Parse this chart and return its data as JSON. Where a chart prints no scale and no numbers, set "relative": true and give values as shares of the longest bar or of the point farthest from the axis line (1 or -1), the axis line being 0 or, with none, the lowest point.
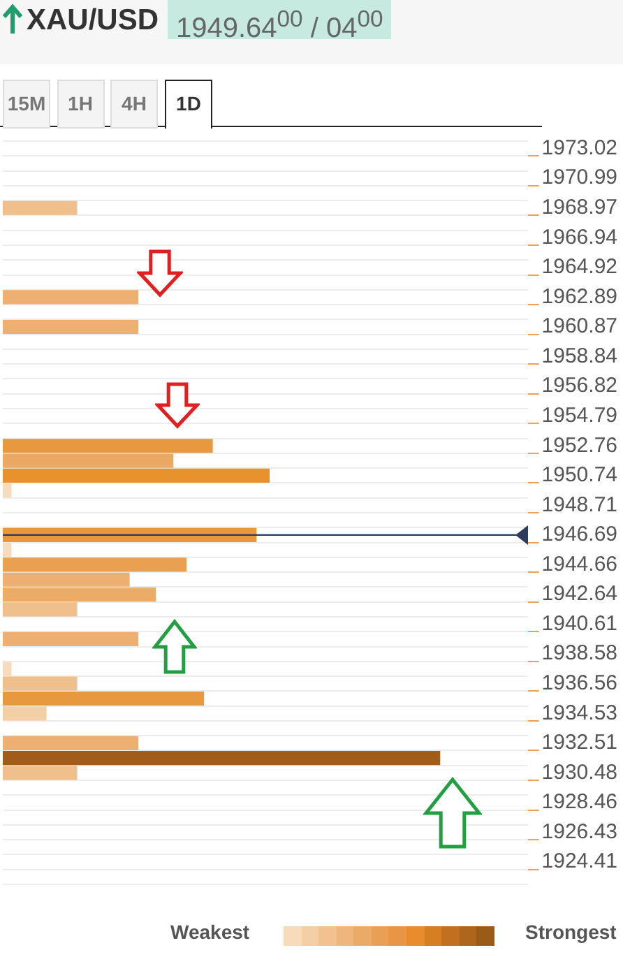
{
  "chart_data": {
    "type": "bar",
    "orientation": "horizontal",
    "relative": true,
    "title": "XAU/USD",
    "subtitle": "1949.64$^{00}$ / 04$^{00}$",
    "categories": [
      "1973.02",
      null,
      "1970.99",
      null,
      "1968.97",
      null,
      "1966.94",
      null,
      "1964.92",
      null,
      "1962.89",
      null,
      "1960.87",
      null,
      "1958.84",
      null,
      "1956.82",
      null,
      "1954.79",
      null,
      "1952.76",
      null,
      "1950.74",
      null,
      "1948.71",
      null,
      "1946.69",
      null,
      "1944.66",
      null,
      "1942.64",
      null,
      "1940.61",
      null,
      "1938.58",
      null,
      "1936.56",
      null,
      "1934.53",
      null,
      "1932.51",
      null,
      "1930.48",
      null,
      "1928.46",
      null,
      "1926.43",
      null,
      "1924.41",
      null
    ],
    "values": [
      null,
      null,
      null,
      null,
      0.17,
      null,
      null,
      null,
      null,
      null,
      0.31,
      null,
      0.31,
      null,
      null,
      null,
      null,
      null,
      null,
      null,
      0.48,
      0.39,
      0.61,
      0.02,
      null,
      null,
      0.58,
      0.02,
      0.42,
      0.29,
      0.35,
      0.17,
      null,
      0.31,
      null,
      0.02,
      0.17,
      0.46,
      0.1,
      null,
      0.31,
      1,
      0.17,
      null,
      null,
      null,
      null,
      null,
      null,
      null
    ],
    "colors": [
      null,
      null,
      null,
      null,
      "#f0c08c",
      null,
      null,
      null,
      null,
      null,
      "#edb072",
      null,
      "#edb072",
      null,
      null,
      null,
      null,
      null,
      null,
      null,
      "#e8983e",
      "#eba862",
      "#e8922e",
      "#f5dcc0",
      null,
      null,
      "#e8983a",
      "#f5dcc0",
      "#e9a050",
      "#edb072",
      "#ebac68",
      "#f0c08c",
      null,
      "#edb072",
      null,
      "#f5dcc0",
      "#f0c08c",
      "#e8993f",
      "#f3cfa5",
      null,
      "#edb072",
      "#a05c18",
      "#f0c08c",
      null,
      null,
      null,
      null,
      null,
      null,
      null
    ],
    "grid": "y",
    "legend": false,
    "ref_lines": [
      {
        "axis": "y",
        "value": "1946.69",
        "color": "#2c3e5c"
      }
    ],
    "annotations": [
      "15M",
      "1H",
      "4H",
      "1D",
      "Weakest",
      "Strongest"
    ]
  }
}
